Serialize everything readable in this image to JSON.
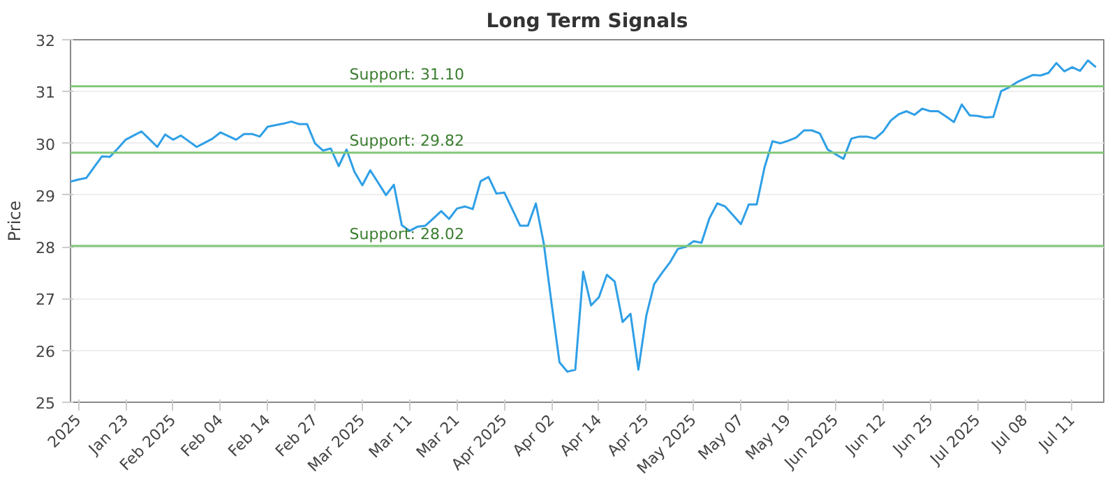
{
  "chart_data": {
    "type": "line",
    "title": "Long Term Signals",
    "ylabel": "Price",
    "categories": [
      null,
      "2025",
      null,
      null,
      null,
      null,
      null,
      "Jan 23",
      null,
      null,
      null,
      null,
      null,
      "Feb 2025",
      null,
      null,
      null,
      null,
      null,
      "Feb 04",
      null,
      null,
      null,
      null,
      null,
      "Feb 14",
      null,
      null,
      null,
      null,
      null,
      "Feb 27",
      null,
      null,
      null,
      null,
      null,
      "Mar 2025",
      null,
      null,
      null,
      null,
      null,
      "Mar 11",
      null,
      null,
      null,
      null,
      null,
      "Mar 21",
      null,
      null,
      null,
      null,
      null,
      "Apr 2025",
      null,
      null,
      null,
      null,
      null,
      "Apr 02",
      null,
      null,
      null,
      null,
      null,
      "Apr 14",
      null,
      null,
      null,
      null,
      null,
      "Apr 25",
      null,
      null,
      null,
      null,
      null,
      "May 2025",
      null,
      null,
      null,
      null,
      null,
      "May 07",
      null,
      null,
      null,
      null,
      null,
      "May 19",
      null,
      null,
      null,
      null,
      null,
      "Jun 2025",
      null,
      null,
      null,
      null,
      null,
      "Jun 12",
      null,
      null,
      null,
      null,
      null,
      "Jun 25",
      null,
      null,
      null,
      null,
      null,
      "Jul 2025",
      null,
      null,
      null,
      null,
      null,
      "Jul 08",
      null,
      null,
      null,
      null,
      null,
      "Jul 11",
      null,
      null,
      null
    ],
    "series": [
      {
        "color": "#2f9fe6",
        "values": [
          29.26,
          29.3,
          29.33,
          29.54,
          29.75,
          29.74,
          29.9,
          30.07,
          30.15,
          30.23,
          30.08,
          29.93,
          30.17,
          30.07,
          30.15,
          30.04,
          29.93,
          30.01,
          30.09,
          30.21,
          30.14,
          30.07,
          30.18,
          30.18,
          30.13,
          30.32,
          30.35,
          30.38,
          30.42,
          30.37,
          30.37,
          30.0,
          29.86,
          29.9,
          29.56,
          29.88,
          29.45,
          29.19,
          29.48,
          29.24,
          29.0,
          29.2,
          28.42,
          28.31,
          28.39,
          28.41,
          28.55,
          28.69,
          28.54,
          28.74,
          28.78,
          28.73,
          29.27,
          29.35,
          29.03,
          29.05,
          28.73,
          28.41,
          28.41,
          28.84,
          28.07,
          26.9,
          25.77,
          25.59,
          25.63,
          27.52,
          26.87,
          27.03,
          27.46,
          27.33,
          26.55,
          26.71,
          25.63,
          26.67,
          27.28,
          27.5,
          27.7,
          27.96,
          28.0,
          28.11,
          28.08,
          28.55,
          28.84,
          28.78,
          28.61,
          28.44,
          28.82,
          28.82,
          29.54,
          30.04,
          30.0,
          30.05,
          30.11,
          30.25,
          30.25,
          30.19,
          29.88,
          29.79,
          29.7,
          30.09,
          30.13,
          30.13,
          30.09,
          30.22,
          30.44,
          30.56,
          30.62,
          30.55,
          30.67,
          30.62,
          30.62,
          30.52,
          30.41,
          30.75,
          30.54,
          30.53,
          30.5,
          30.51,
          31.01,
          31.08,
          31.18,
          31.25,
          31.32,
          31.31,
          31.36,
          31.55,
          31.39,
          31.47,
          31.4,
          31.6,
          31.47
        ]
      }
    ],
    "ylim": [
      25,
      32
    ],
    "yticks": [
      25,
      26,
      27,
      28,
      29,
      30,
      31,
      32
    ],
    "grid": "y",
    "marker": "none",
    "line_style": "solid",
    "ref_lines": [
      {
        "axis": "y",
        "value": 31.1,
        "label": "Support: 31.10",
        "color": "#80c878"
      },
      {
        "axis": "y",
        "value": 29.82,
        "label": "Support: 29.82",
        "color": "#80c878"
      },
      {
        "axis": "y",
        "value": 28.02,
        "label": "Support: 28.02",
        "color": "#80c878"
      }
    ]
  }
}
